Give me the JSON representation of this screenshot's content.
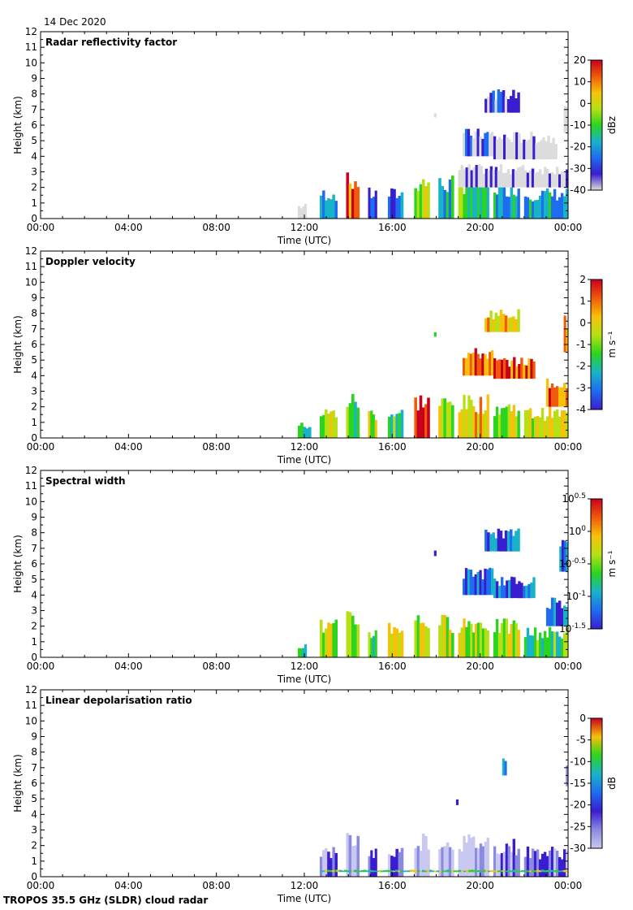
{
  "date": "14 Dec 2020",
  "footer": "TROPOS 35.5 GHz (SLDR) cloud radar",
  "chart_data": [
    {
      "type": "heatmap",
      "title": "Radar reflectivity factor",
      "xlabel": "Time (UTC)",
      "ylabel": "Height (km)",
      "xticks": [
        "00:00",
        "04:00",
        "08:00",
        "12:00",
        "16:00",
        "20:00",
        "00:00"
      ],
      "yticks": [
        "0",
        "1",
        "2",
        "3",
        "4",
        "5",
        "6",
        "7",
        "8",
        "9",
        "10",
        "11",
        "12"
      ],
      "xlim": [
        0,
        24
      ],
      "ylim": [
        0,
        12
      ],
      "colorbar": {
        "label": "dBz",
        "ticks": [
          "20",
          "10",
          "0",
          "-10",
          "-20",
          "-30",
          "-40"
        ],
        "range": [
          -40,
          20
        ]
      },
      "colors": [
        "#dcdcdc",
        "#3a1dd0",
        "#1e6cf0",
        "#19b3c8",
        "#2bd41f",
        "#b6e014",
        "#f7c10a",
        "#f05a0a",
        "#c8001e"
      ],
      "regions": [
        {
          "t0": 11.7,
          "t1": 12.1,
          "h0": 0.0,
          "h1": 1.0,
          "level": 0
        },
        {
          "t0": 12.7,
          "t1": 13.5,
          "h0": 0.0,
          "h1": 2.0,
          "level": 3
        },
        {
          "t0": 13.9,
          "t1": 14.5,
          "h0": 0.0,
          "h1": 3.0,
          "level": 7
        },
        {
          "t0": 14.9,
          "t1": 15.3,
          "h0": 0.0,
          "h1": 2.0,
          "level": 2
        },
        {
          "t0": 15.8,
          "t1": 16.5,
          "h0": 0.0,
          "h1": 2.0,
          "level": 2
        },
        {
          "t0": 17.0,
          "t1": 17.7,
          "h0": 0.0,
          "h1": 3.0,
          "level": 5
        },
        {
          "t0": 18.1,
          "t1": 18.8,
          "h0": 0.0,
          "h1": 2.8,
          "level": 3
        },
        {
          "t0": 19.0,
          "t1": 20.4,
          "h0": 0.0,
          "h1": 2.8,
          "level": 4
        },
        {
          "t0": 20.6,
          "t1": 21.8,
          "h0": 0.0,
          "h1": 2.5,
          "level": 3
        },
        {
          "t0": 22.0,
          "t1": 24.0,
          "h0": 0.0,
          "h1": 2.0,
          "level": 3
        },
        {
          "t0": 19.0,
          "t1": 24.0,
          "h0": 2.0,
          "h1": 3.5,
          "level": 0
        },
        {
          "t0": 19.2,
          "t1": 20.6,
          "h0": 4.0,
          "h1": 5.8,
          "level": 1
        },
        {
          "t0": 20.6,
          "t1": 23.5,
          "h0": 3.8,
          "h1": 5.6,
          "level": 0
        },
        {
          "t0": 20.2,
          "t1": 21.8,
          "h0": 6.8,
          "h1": 8.3,
          "level": 1
        },
        {
          "t0": 17.9,
          "t1": 18.0,
          "h0": 6.5,
          "h1": 6.9,
          "level": 1
        },
        {
          "t0": 23.8,
          "t1": 24.0,
          "h0": 5.5,
          "h1": 8.0,
          "level": 1
        }
      ]
    },
    {
      "type": "heatmap",
      "title": "Doppler velocity",
      "xlabel": "Time (UTC)",
      "ylabel": "Height (km)",
      "xticks": [
        "00:00",
        "04:00",
        "08:00",
        "12:00",
        "16:00",
        "20:00",
        "00:00"
      ],
      "yticks": [
        "0",
        "1",
        "2",
        "3",
        "4",
        "5",
        "6",
        "7",
        "8",
        "9",
        "10",
        "11",
        "12"
      ],
      "xlim": [
        0,
        24
      ],
      "ylim": [
        0,
        12
      ],
      "colorbar": {
        "label": "m s⁻¹",
        "ticks": [
          "2",
          "1",
          "0",
          "-1",
          "-2",
          "-3",
          "-4"
        ],
        "range": [
          -4,
          2
        ]
      },
      "colors": [
        "#3a1dd0",
        "#1e6cf0",
        "#19b3c8",
        "#2bd41f",
        "#b6e014",
        "#f7c10a",
        "#f05a0a",
        "#c8001e"
      ],
      "regions": [
        {
          "t0": 11.7,
          "t1": 12.3,
          "h0": 0.0,
          "h1": 1.0,
          "level": 3
        },
        {
          "t0": 12.7,
          "t1": 13.5,
          "h0": 0.0,
          "h1": 2.0,
          "level": 4
        },
        {
          "t0": 13.9,
          "t1": 14.5,
          "h0": 0.0,
          "h1": 3.0,
          "level": 3
        },
        {
          "t0": 14.9,
          "t1": 15.3,
          "h0": 0.0,
          "h1": 2.0,
          "level": 4
        },
        {
          "t0": 15.8,
          "t1": 16.5,
          "h0": 0.0,
          "h1": 2.0,
          "level": 3
        },
        {
          "t0": 17.0,
          "t1": 17.7,
          "h0": 0.0,
          "h1": 3.0,
          "level": 6
        },
        {
          "t0": 18.1,
          "t1": 18.8,
          "h0": 0.0,
          "h1": 2.8,
          "level": 4
        },
        {
          "t0": 19.0,
          "t1": 20.4,
          "h0": 0.0,
          "h1": 2.8,
          "level": 5
        },
        {
          "t0": 20.6,
          "t1": 21.8,
          "h0": 0.0,
          "h1": 2.5,
          "level": 4
        },
        {
          "t0": 22.0,
          "t1": 24.0,
          "h0": 0.0,
          "h1": 2.0,
          "level": 4
        },
        {
          "t0": 23.0,
          "t1": 24.0,
          "h0": 2.0,
          "h1": 4.0,
          "level": 6
        },
        {
          "t0": 19.2,
          "t1": 20.6,
          "h0": 4.0,
          "h1": 5.8,
          "level": 6
        },
        {
          "t0": 20.6,
          "t1": 22.5,
          "h0": 3.8,
          "h1": 5.2,
          "level": 6
        },
        {
          "t0": 20.2,
          "t1": 21.8,
          "h0": 6.8,
          "h1": 8.3,
          "level": 5
        },
        {
          "t0": 17.9,
          "t1": 18.0,
          "h0": 6.5,
          "h1": 6.9,
          "level": 3
        },
        {
          "t0": 23.8,
          "t1": 24.0,
          "h0": 5.5,
          "h1": 8.0,
          "level": 6
        }
      ]
    },
    {
      "type": "heatmap",
      "title": "Spectral width",
      "xlabel": "Time (UTC)",
      "ylabel": "Height (km)",
      "xticks": [
        "00:00",
        "04:00",
        "08:00",
        "12:00",
        "16:00",
        "20:00",
        "00:00"
      ],
      "yticks": [
        "0",
        "1",
        "2",
        "3",
        "4",
        "5",
        "6",
        "7",
        "8",
        "9",
        "10",
        "11",
        "12"
      ],
      "xlim": [
        0,
        24
      ],
      "ylim": [
        0,
        12
      ],
      "colorbar": {
        "label": "m s⁻¹",
        "ticks": [
          "10^0.5",
          "10^0",
          "10^-0.5",
          "10^-1",
          "10^-1.5"
        ],
        "range": [
          -1.5,
          0.5
        ],
        "scale": "log10"
      },
      "colors": [
        "#3a1dd0",
        "#1e6cf0",
        "#19b3c8",
        "#2bd41f",
        "#b6e014",
        "#f7c10a",
        "#f05a0a",
        "#c8001e"
      ],
      "regions": [
        {
          "t0": 11.7,
          "t1": 12.1,
          "h0": 0.0,
          "h1": 1.0,
          "level": 2
        },
        {
          "t0": 12.7,
          "t1": 13.5,
          "h0": 0.0,
          "h1": 2.5,
          "level": 4
        },
        {
          "t0": 13.9,
          "t1": 14.5,
          "h0": 0.0,
          "h1": 3.0,
          "level": 4
        },
        {
          "t0": 14.9,
          "t1": 15.3,
          "h0": 0.0,
          "h1": 2.0,
          "level": 3
        },
        {
          "t0": 15.8,
          "t1": 16.5,
          "h0": 0.0,
          "h1": 2.5,
          "level": 4
        },
        {
          "t0": 17.0,
          "t1": 17.7,
          "h0": 0.0,
          "h1": 3.0,
          "level": 4
        },
        {
          "t0": 18.1,
          "t1": 18.8,
          "h0": 0.0,
          "h1": 2.8,
          "level": 4
        },
        {
          "t0": 19.0,
          "t1": 20.4,
          "h0": 0.0,
          "h1": 2.8,
          "level": 4
        },
        {
          "t0": 20.6,
          "t1": 21.8,
          "h0": 0.0,
          "h1": 2.5,
          "level": 4
        },
        {
          "t0": 22.0,
          "t1": 24.0,
          "h0": 0.0,
          "h1": 2.0,
          "level": 3
        },
        {
          "t0": 19.2,
          "t1": 20.6,
          "h0": 4.0,
          "h1": 5.8,
          "level": 1
        },
        {
          "t0": 20.6,
          "t1": 22.5,
          "h0": 3.8,
          "h1": 5.2,
          "level": 1
        },
        {
          "t0": 20.2,
          "t1": 21.8,
          "h0": 6.8,
          "h1": 8.3,
          "level": 1
        },
        {
          "t0": 17.9,
          "t1": 18.0,
          "h0": 6.5,
          "h1": 6.9,
          "level": 1
        },
        {
          "t0": 23.6,
          "t1": 24.0,
          "h0": 5.5,
          "h1": 8.0,
          "level": 1
        },
        {
          "t0": 23.0,
          "t1": 24.0,
          "h0": 2.0,
          "h1": 4.0,
          "level": 1
        }
      ]
    },
    {
      "type": "heatmap",
      "title": "Linear depolarisation ratio",
      "xlabel": "Time (UTC)",
      "ylabel": "Height (km)",
      "xticks": [
        "00:00",
        "04:00",
        "08:00",
        "12:00",
        "16:00",
        "20:00",
        "00:00"
      ],
      "yticks": [
        "0",
        "1",
        "2",
        "3",
        "4",
        "5",
        "6",
        "7",
        "8",
        "9",
        "10",
        "11",
        "12"
      ],
      "xlim": [
        0,
        24
      ],
      "ylim": [
        0,
        12
      ],
      "colorbar": {
        "label": "dB",
        "ticks": [
          "0",
          "-5",
          "-10",
          "-15",
          "-20",
          "-25",
          "-30"
        ],
        "range": [
          -30,
          0
        ]
      },
      "colors": [
        "#c8c8f0",
        "#8a8ae0",
        "#3a1dd0",
        "#1e6cf0",
        "#19b3c8",
        "#2bd41f",
        "#f7c10a",
        "#c8001e"
      ],
      "regions": [
        {
          "t0": 12.7,
          "t1": 13.5,
          "h0": 0.0,
          "h1": 2.0,
          "level": 1
        },
        {
          "t0": 13.9,
          "t1": 14.5,
          "h0": 0.0,
          "h1": 3.0,
          "level": 0
        },
        {
          "t0": 14.9,
          "t1": 15.3,
          "h0": 0.0,
          "h1": 2.0,
          "level": 1
        },
        {
          "t0": 15.8,
          "t1": 16.5,
          "h0": 0.0,
          "h1": 2.0,
          "level": 1
        },
        {
          "t0": 17.0,
          "t1": 17.7,
          "h0": 0.0,
          "h1": 3.0,
          "level": 0
        },
        {
          "t0": 18.1,
          "t1": 18.8,
          "h0": 0.0,
          "h1": 2.8,
          "level": 0
        },
        {
          "t0": 19.0,
          "t1": 20.4,
          "h0": 0.0,
          "h1": 2.8,
          "level": 0
        },
        {
          "t0": 20.6,
          "t1": 21.8,
          "h0": 0.0,
          "h1": 2.5,
          "level": 1
        },
        {
          "t0": 22.0,
          "t1": 24.0,
          "h0": 0.0,
          "h1": 2.0,
          "level": 1
        },
        {
          "t0": 12.7,
          "t1": 24.0,
          "h0": 0.3,
          "h1": 0.45,
          "level": 5
        },
        {
          "t0": 21.0,
          "t1": 21.2,
          "h0": 6.5,
          "h1": 7.8,
          "level": 3
        },
        {
          "t0": 18.9,
          "t1": 19.0,
          "h0": 4.6,
          "h1": 5.2,
          "level": 2
        },
        {
          "t0": 23.9,
          "t1": 24.0,
          "h0": 5.8,
          "h1": 7.5,
          "level": 2
        }
      ]
    }
  ]
}
